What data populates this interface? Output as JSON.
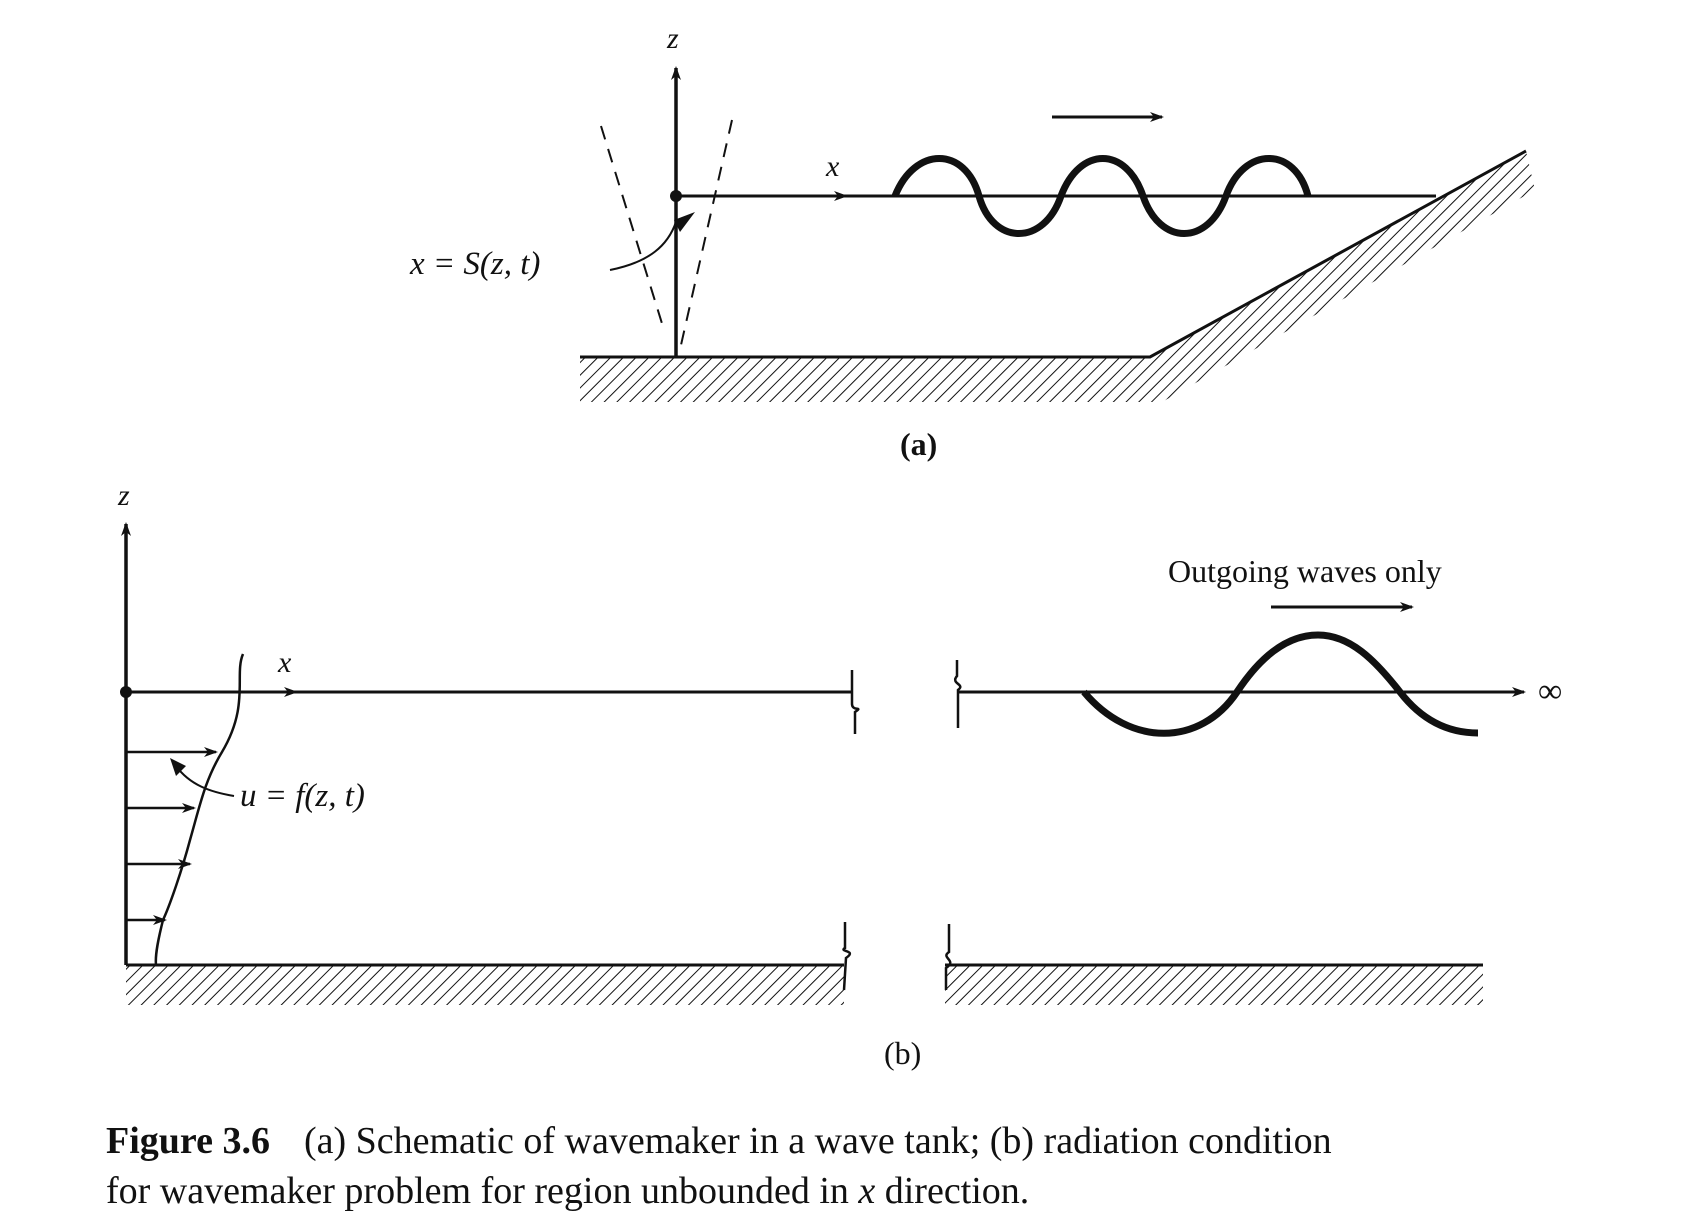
{
  "panel_a": {
    "z_label": "z",
    "x_label": "x",
    "paddle_label": "x = S(z, t)",
    "caption": "(a)"
  },
  "panel_b": {
    "z_label": "z",
    "x_label": "x",
    "velocity_label": "u = f(z, t)",
    "outgoing_label": "Outgoing waves only",
    "infinity_label": "∞",
    "caption": "(b)"
  },
  "figure_caption": {
    "number": "Figure 3.6",
    "line1_text": "(a) Schematic of wavemaker in a wave tank; (b) radiation condition",
    "line2_text_before": "for wavemaker problem for region unbounded in ",
    "line2_var": "x",
    "line2_text_after": " direction."
  }
}
